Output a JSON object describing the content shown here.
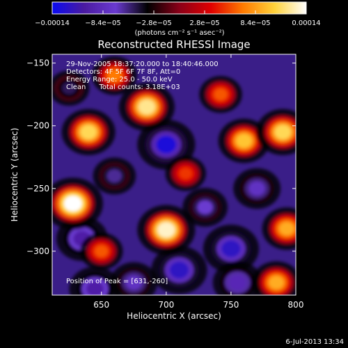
{
  "chart_data": {
    "type": "heatmap",
    "title": "Reconstructed RHESSI Image",
    "xlabel": "Heliocentric X (arcsec)",
    "ylabel": "Heliocentric Y (arcsec)",
    "xlim": [
      612,
      800
    ],
    "ylim": [
      -335,
      -143
    ],
    "x_ticks": [
      650,
      700,
      750,
      800
    ],
    "y_ticks": [
      -150,
      -200,
      -250,
      -300
    ],
    "x_tick_labels": [
      "650",
      "700",
      "750",
      "800"
    ],
    "y_tick_labels": [
      "−150",
      "−200",
      "−250",
      "−300"
    ],
    "colorbar": {
      "min": -0.00014,
      "max": 0.00014,
      "tick_values": [
        -0.00014,
        -8.4e-05,
        -2.8e-05,
        2.8e-05,
        8.4e-05,
        0.00014
      ],
      "tick_labels": [
        "−0.00014",
        "−8.4e−05",
        "−2.8e−05",
        "2.8e−05",
        "8.4e−05",
        "0.00014"
      ],
      "units_text": "(photons cm⁻² s⁻¹ asec⁻²)",
      "stops": [
        "#0a0af0",
        "#4a1aa0",
        "#6a3ad0",
        "#000000",
        "#8a0018",
        "#e00000",
        "#ff7a00",
        "#ffd23a",
        "#ffffff"
      ]
    },
    "info_lines": [
      "29-Nov-2005 18:37:20.000 to 18:40:46.000",
      "Detectors: 4F 5F 6F 7F 8F, Att=0",
      "Energy Range: 25.0 - 50.0 keV",
      "Clean      Total counts: 3.18E+03"
    ],
    "peak_text": "Position of Peak = [631,-260]",
    "peak_position": [
      631,
      -260
    ],
    "hot_spots": [
      {
        "x": 628,
        "y": -262,
        "value": 0.00014
      },
      {
        "x": 640,
        "y": -205,
        "value": 0.00011
      },
      {
        "x": 685,
        "y": -185,
        "value": 0.00012
      },
      {
        "x": 700,
        "y": -283,
        "value": 0.00013
      },
      {
        "x": 760,
        "y": -212,
        "value": 0.0001
      },
      {
        "x": 790,
        "y": -205,
        "value": 0.00011
      },
      {
        "x": 793,
        "y": -282,
        "value": 9e-05
      },
      {
        "x": 785,
        "y": -325,
        "value": 9e-05
      },
      {
        "x": 660,
        "y": -160,
        "value": 7e-05
      },
      {
        "x": 742,
        "y": -175,
        "value": 6e-05
      },
      {
        "x": 715,
        "y": -238,
        "value": 5e-05
      },
      {
        "x": 650,
        "y": -300,
        "value": 6e-05
      }
    ],
    "cold_spots": [
      {
        "x": 700,
        "y": -215,
        "value": -0.00013
      },
      {
        "x": 710,
        "y": -315,
        "value": -0.00012
      },
      {
        "x": 750,
        "y": -298,
        "value": -0.00012
      },
      {
        "x": 635,
        "y": -290,
        "value": -0.0001
      },
      {
        "x": 645,
        "y": -330,
        "value": -0.0001
      },
      {
        "x": 755,
        "y": -325,
        "value": -9e-05
      },
      {
        "x": 770,
        "y": -250,
        "value": -8e-05
      },
      {
        "x": 675,
        "y": -325,
        "value": -8e-05
      },
      {
        "x": 730,
        "y": -265,
        "value": -7e-05
      },
      {
        "x": 660,
        "y": -240,
        "value": -6e-05
      },
      {
        "x": 625,
        "y": -170,
        "value": -5e-05
      }
    ]
  },
  "footer": {
    "timestamp": "6-Jul-2013 13:34"
  }
}
